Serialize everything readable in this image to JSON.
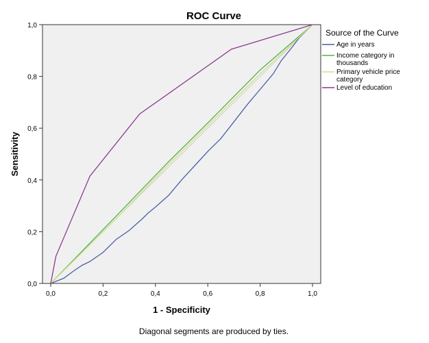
{
  "chart_data": {
    "type": "line",
    "title": "ROC Curve",
    "xlabel": "1 - Specificity",
    "ylabel": "Sensitivity",
    "xlim": [
      0,
      1
    ],
    "ylim": [
      0,
      1
    ],
    "x_ticks": [
      "0,0",
      "0,2",
      "0,4",
      "0,6",
      "0,8",
      "1,0"
    ],
    "y_ticks": [
      "0,0",
      "0,2",
      "0,4",
      "0,6",
      "0,8",
      "1,0"
    ],
    "grid": false,
    "legend": {
      "title": "Source of the Curve",
      "placement": "right"
    },
    "series": [
      {
        "name": "Age in years",
        "color": "#4a5fa8",
        "points": [
          [
            0,
            0
          ],
          [
            0.05,
            0.02
          ],
          [
            0.09,
            0.05
          ],
          [
            0.12,
            0.07
          ],
          [
            0.15,
            0.085
          ],
          [
            0.2,
            0.12
          ],
          [
            0.25,
            0.17
          ],
          [
            0.3,
            0.205
          ],
          [
            0.35,
            0.25
          ],
          [
            0.37,
            0.27
          ],
          [
            0.4,
            0.295
          ],
          [
            0.45,
            0.34
          ],
          [
            0.5,
            0.4
          ],
          [
            0.55,
            0.455
          ],
          [
            0.6,
            0.51
          ],
          [
            0.65,
            0.56
          ],
          [
            0.7,
            0.625
          ],
          [
            0.75,
            0.69
          ],
          [
            0.8,
            0.75
          ],
          [
            0.85,
            0.81
          ],
          [
            0.88,
            0.86
          ],
          [
            0.92,
            0.91
          ],
          [
            0.95,
            0.95
          ],
          [
            1,
            1
          ]
        ]
      },
      {
        "name": "Income category in thousands",
        "color": "#4db34d",
        "points": [
          [
            0,
            0
          ],
          [
            0.25,
            0.26
          ],
          [
            0.45,
            0.47
          ],
          [
            0.6,
            0.62
          ],
          [
            0.8,
            0.825
          ],
          [
            1,
            1
          ]
        ]
      },
      {
        "name": "Primary vehicle price category",
        "color": "#d2dd8c",
        "points": [
          [
            0,
            0
          ],
          [
            0.25,
            0.25
          ],
          [
            0.45,
            0.46
          ],
          [
            0.6,
            0.61
          ],
          [
            0.8,
            0.81
          ],
          [
            1,
            1
          ]
        ]
      },
      {
        "name": "Level of education",
        "color": "#8b3a8f",
        "points": [
          [
            0,
            0
          ],
          [
            0.02,
            0.105
          ],
          [
            0.15,
            0.415
          ],
          [
            0.34,
            0.655
          ],
          [
            0.69,
            0.905
          ],
          [
            1,
            1
          ]
        ]
      }
    ],
    "footnote": "Diagonal segments are produced by ties."
  }
}
